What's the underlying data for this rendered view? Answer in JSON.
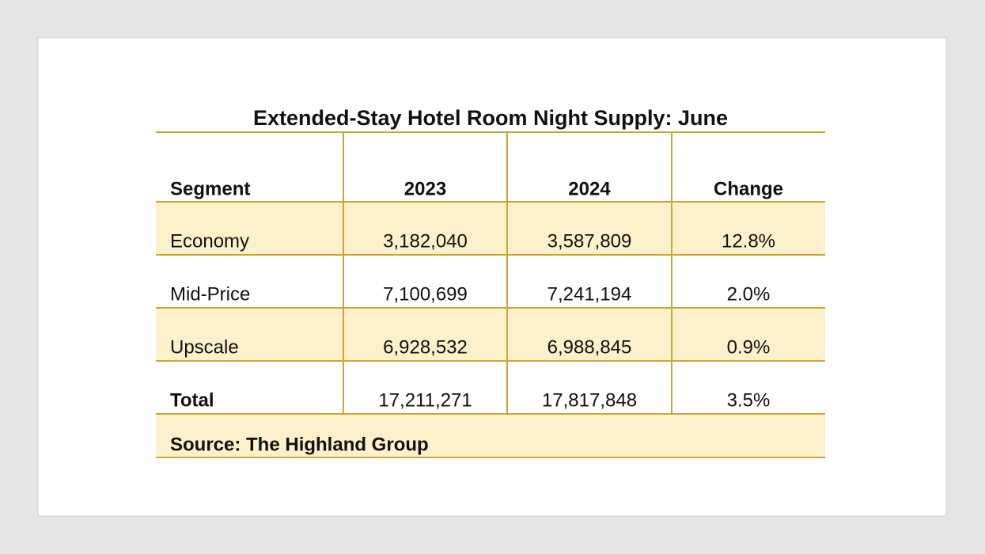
{
  "table": {
    "title": "Extended-Stay Hotel Room Night Supply: June",
    "header": [
      "Segment",
      "2023",
      "2024",
      "Change"
    ],
    "rows": [
      [
        "Economy",
        "3,182,040",
        "3,587,809",
        "12.8%"
      ],
      [
        "Mid-Price",
        "7,100,699",
        "7,241,194",
        "2.0%"
      ],
      [
        "Upscale",
        "6,928,532",
        "6,988,845",
        "0.9%"
      ],
      [
        "Total",
        "17,211,271",
        "17,817,848",
        "3.5%"
      ]
    ],
    "source": "Source: The Highland Group"
  }
}
